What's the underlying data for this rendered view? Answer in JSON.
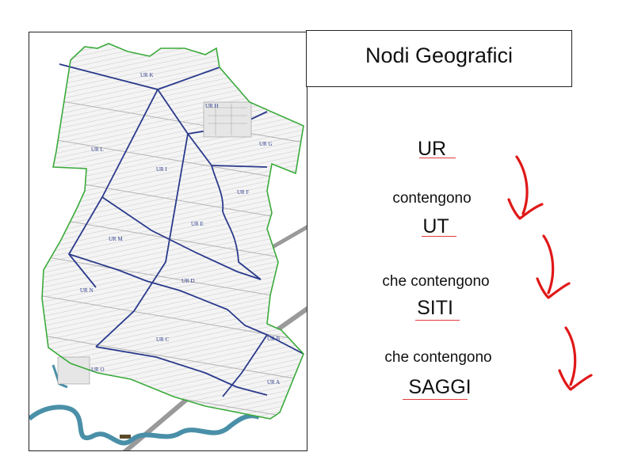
{
  "title": "Nodi Geografici",
  "hierarchy": {
    "level1": "UR",
    "conn1": "contengono",
    "level2": "UT",
    "conn2": "che contengono",
    "level3": "SITI",
    "conn3": "che contengono",
    "level4": "SAGGI"
  },
  "map": {
    "zone_labels": [
      "UR K",
      "UR H",
      "UR G",
      "UR L",
      "UR I",
      "UR F",
      "UR E",
      "UR M",
      "UR D",
      "UR N",
      "UR C",
      "UR B",
      "UR O",
      "UR A"
    ],
    "colors": {
      "boundary": "#3aaa3a",
      "roads": "#2a3a8c",
      "river": "#4a8fa8",
      "highway": "#9a9a9a",
      "fields": "#c8c8c8"
    }
  },
  "colors": {
    "arrow": "#e01818",
    "underline": "#e03a3a"
  }
}
